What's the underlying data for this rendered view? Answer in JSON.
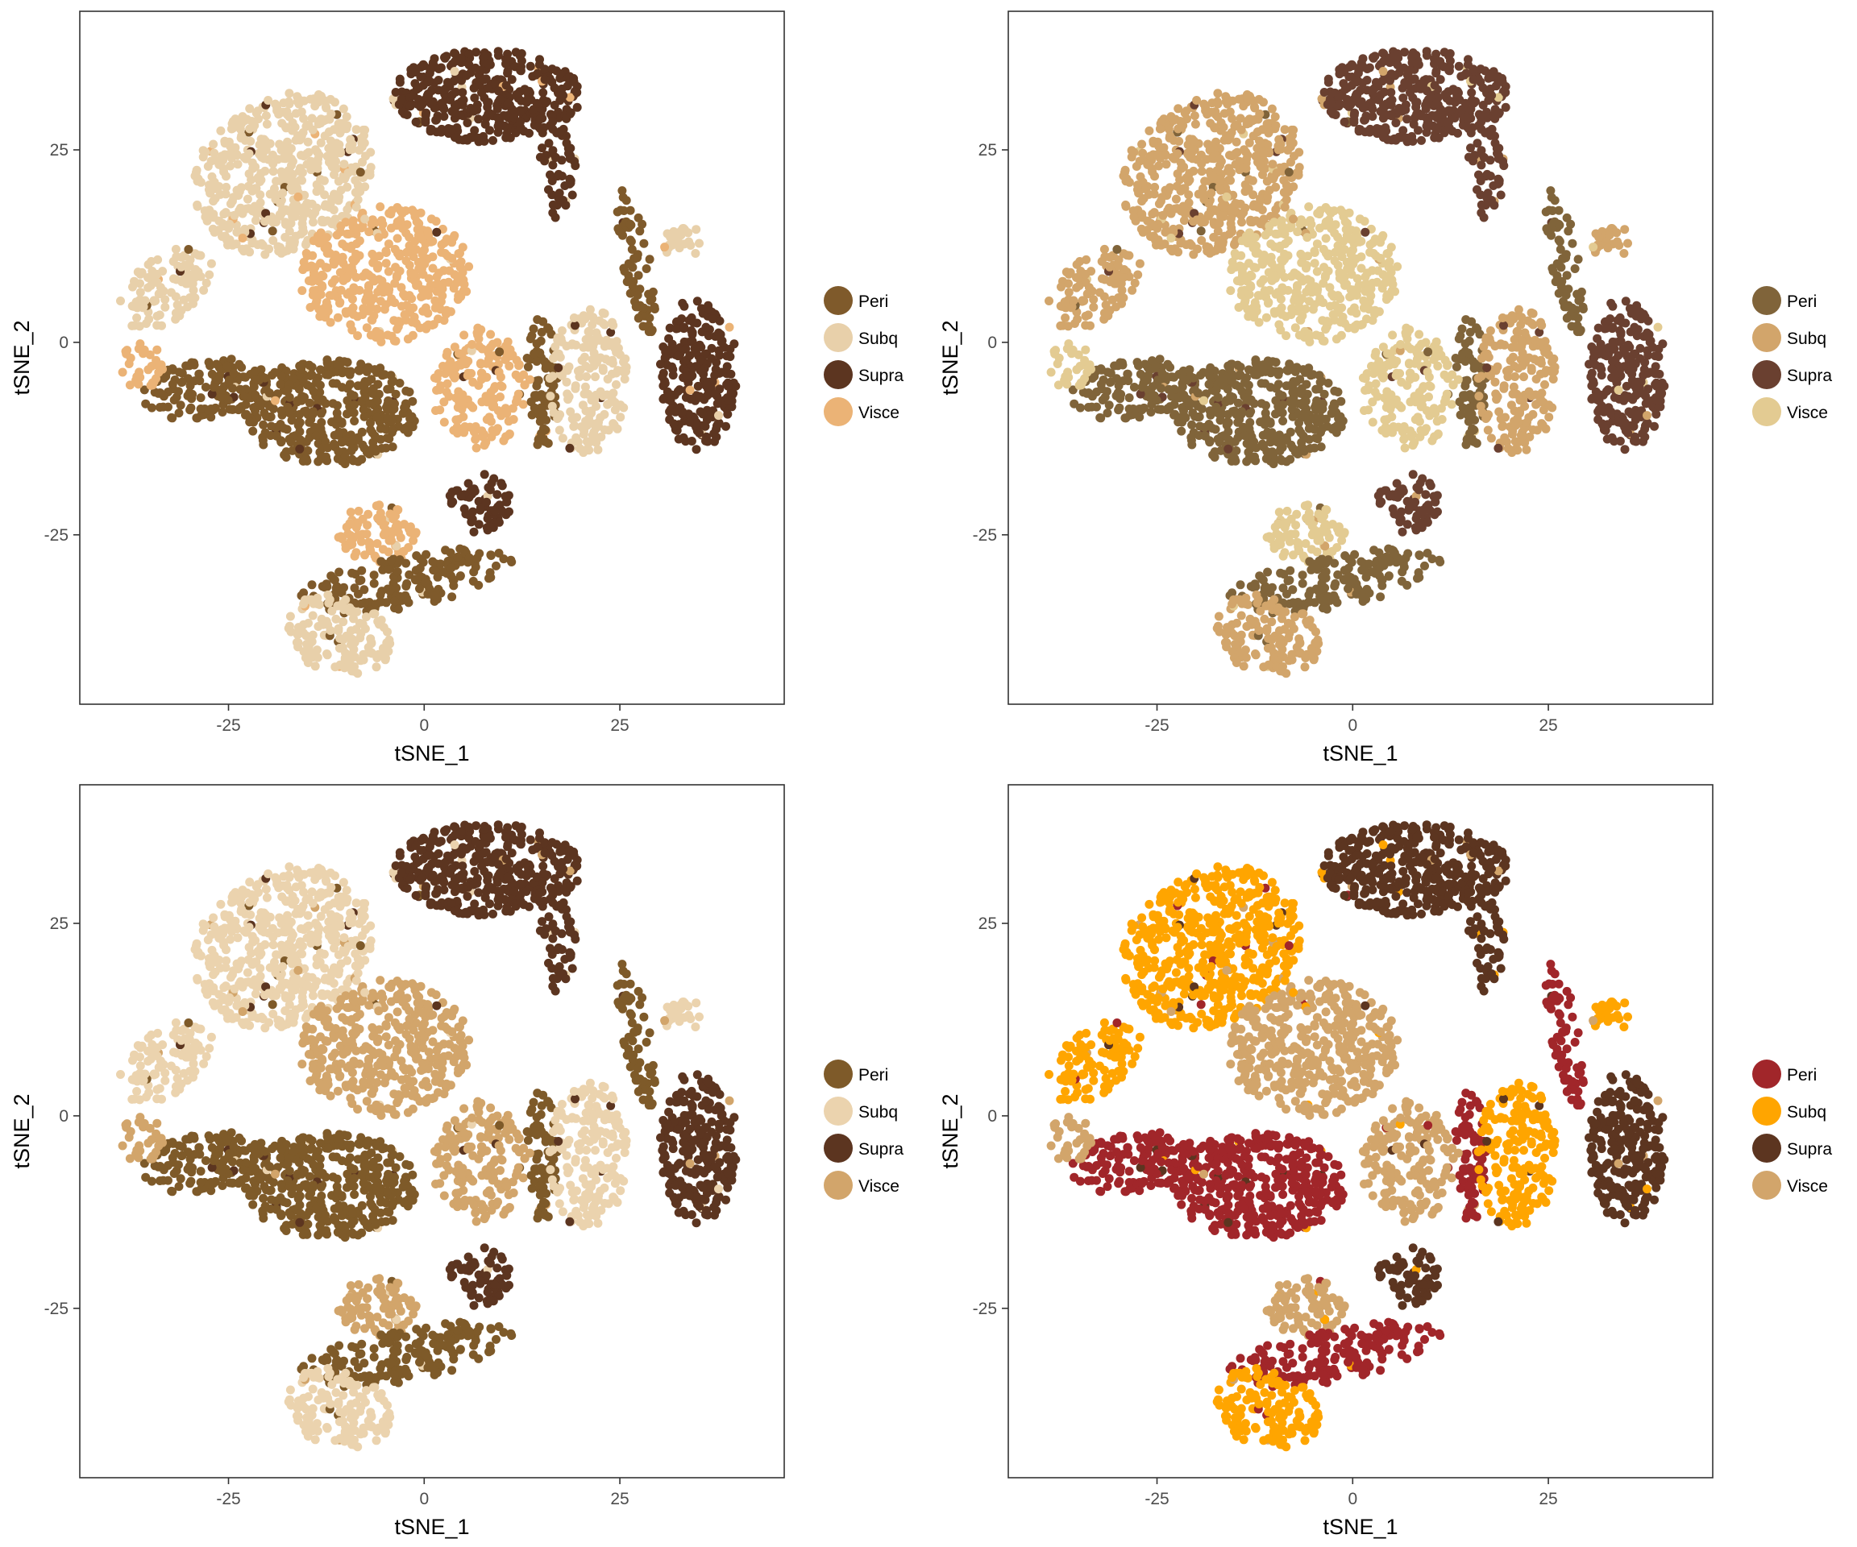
{
  "chart_data": [
    {
      "type": "scatter",
      "xlabel": "tSNE_1",
      "ylabel": "tSNE_2",
      "xlim": [
        -44,
        46
      ],
      "ylim": [
        -47,
        43
      ],
      "xticks": [
        -25,
        0,
        25
      ],
      "yticks": [
        25,
        0,
        -25
      ],
      "grid": false,
      "legend_position": "right",
      "series": [
        {
          "name": "Peri",
          "color": "#7f5a2b"
        },
        {
          "name": "Subq",
          "color": "#e8d0aa"
        },
        {
          "name": "Supra",
          "color": "#5c3520"
        },
        {
          "name": "Visce",
          "color": "#ebb376"
        }
      ]
    },
    {
      "type": "scatter",
      "xlabel": "tSNE_1",
      "ylabel": "tSNE_2",
      "xlim": [
        -44,
        46
      ],
      "ylim": [
        -47,
        43
      ],
      "xticks": [
        -25,
        0,
        25
      ],
      "yticks": [
        25,
        0,
        -25
      ],
      "grid": false,
      "legend_position": "right",
      "series": [
        {
          "name": "Peri",
          "color": "#80643a"
        },
        {
          "name": "Subq",
          "color": "#d2a56b"
        },
        {
          "name": "Supra",
          "color": "#6a4030"
        },
        {
          "name": "Visce",
          "color": "#e3cb92"
        }
      ]
    },
    {
      "type": "scatter",
      "xlabel": "tSNE_1",
      "ylabel": "tSNE_2",
      "xlim": [
        -44,
        46
      ],
      "ylim": [
        -47,
        43
      ],
      "xticks": [
        -25,
        0,
        25
      ],
      "yticks": [
        25,
        0,
        -25
      ],
      "grid": false,
      "legend_position": "right",
      "series": [
        {
          "name": "Peri",
          "color": "#7e5a29"
        },
        {
          "name": "Subq",
          "color": "#ebd3ae"
        },
        {
          "name": "Supra",
          "color": "#5c3520"
        },
        {
          "name": "Visce",
          "color": "#d2a56b"
        }
      ]
    },
    {
      "type": "scatter",
      "xlabel": "tSNE_1",
      "ylabel": "tSNE_2",
      "xlim": [
        -44,
        46
      ],
      "ylim": [
        -47,
        43
      ],
      "xticks": [
        -25,
        0,
        25
      ],
      "yticks": [
        25,
        0,
        -25
      ],
      "grid": false,
      "legend_position": "right",
      "series": [
        {
          "name": "Peri",
          "color": "#a1262a"
        },
        {
          "name": "Subq",
          "color": "#ffa500"
        },
        {
          "name": "Supra",
          "color": "#5c3520"
        },
        {
          "name": "Visce",
          "color": "#d2a56b"
        }
      ]
    }
  ]
}
